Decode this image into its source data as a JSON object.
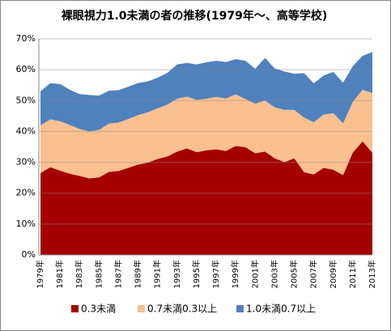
{
  "chart_data": {
    "type": "stacked_area",
    "title": "裸眼視力1.0未満の者の推移(1979年～、高等学校)",
    "categories": [
      "1979年",
      null,
      "1981年",
      null,
      "1983年",
      null,
      "1985年",
      null,
      "1987年",
      null,
      "1989年",
      null,
      "1991年",
      null,
      "1993年",
      null,
      "1995年",
      null,
      "1997年",
      null,
      "1999年",
      null,
      "2001年",
      null,
      "2003年",
      null,
      "2005年",
      null,
      "2007年",
      null,
      "2009年",
      null,
      "2011年",
      null,
      "2013年"
    ],
    "series": [
      {
        "name": "0.3未満",
        "color": "#a50000",
        "values": [
          26.5,
          28.4,
          27.3,
          26.3,
          25.6,
          24.8,
          25.1,
          26.9,
          27.2,
          28.2,
          29.3,
          29.9,
          31.1,
          31.9,
          33.5,
          34.5,
          33.3,
          33.9,
          34.2,
          33.7,
          35.3,
          34.9,
          32.9,
          33.5,
          31.3,
          30.1,
          31.3,
          26.8,
          26.1,
          28.2,
          27.6,
          25.9,
          33.2,
          36.8,
          33.1
        ]
      },
      {
        "name": "0.7未満0.3以上",
        "color": "#fac090",
        "values": [
          15.5,
          15.5,
          16.0,
          15.8,
          15.2,
          15.2,
          15.4,
          15.6,
          15.7,
          15.8,
          16.0,
          16.3,
          16.4,
          16.8,
          17.1,
          16.8,
          16.9,
          16.7,
          17.0,
          17.0,
          16.7,
          15.6,
          16.1,
          16.5,
          16.5,
          16.9,
          15.7,
          17.7,
          16.9,
          17.3,
          18.3,
          16.7,
          16.4,
          16.7,
          19.3
        ]
      },
      {
        "name": "1.0未満0.7以上",
        "color": "#4f81bd",
        "values": [
          11.0,
          11.7,
          12.1,
          11.4,
          11.3,
          11.8,
          11.1,
          10.7,
          10.5,
          10.5,
          10.4,
          10.0,
          9.9,
          10.3,
          11.1,
          10.9,
          11.5,
          11.8,
          11.7,
          11.8,
          11.4,
          12.4,
          11.3,
          13.8,
          12.6,
          12.4,
          11.7,
          14.4,
          12.6,
          12.6,
          13.4,
          13.2,
          11.6,
          11.0,
          13.3
        ]
      }
    ],
    "ylim": [
      0,
      70
    ],
    "yticks": [
      {
        "value": 0,
        "label": "0%"
      },
      {
        "value": 10,
        "label": "10%"
      },
      {
        "value": 20,
        "label": "20%"
      },
      {
        "value": 30,
        "label": "30%"
      },
      {
        "value": 40,
        "label": "40%"
      },
      {
        "value": 50,
        "label": "50%"
      },
      {
        "value": 60,
        "label": "60%"
      },
      {
        "value": 70,
        "label": "70%"
      }
    ],
    "grid": true
  }
}
